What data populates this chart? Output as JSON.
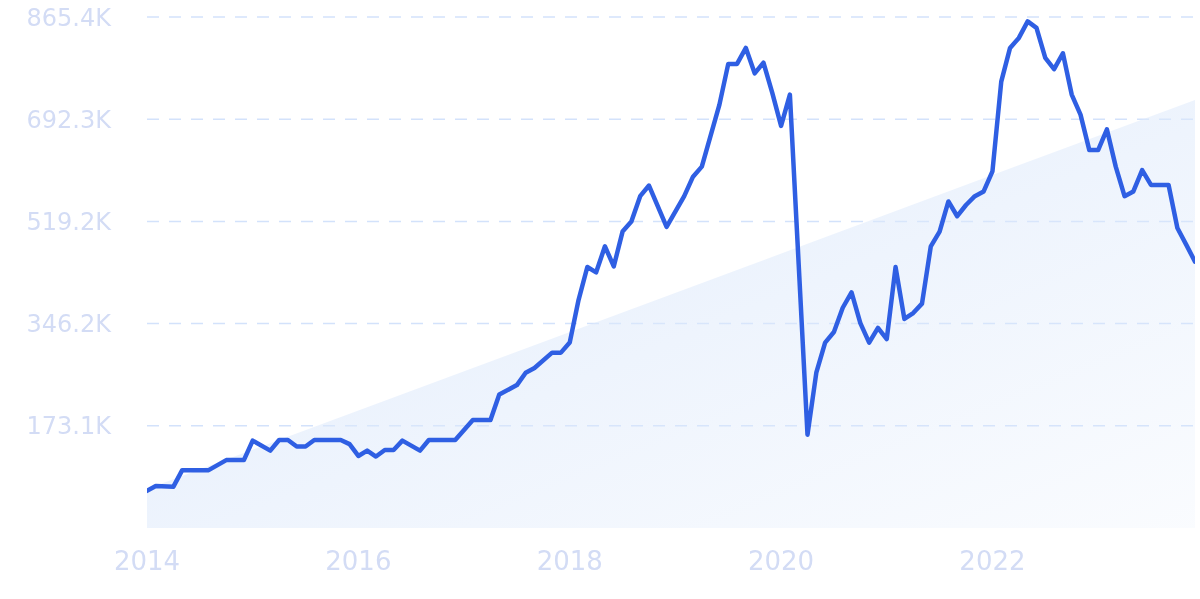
{
  "chart_data": {
    "type": "line",
    "xlim": [
      "2014-01",
      "2023-12"
    ],
    "xticks": [
      "2014",
      "2016",
      "2018",
      "2020",
      "2022"
    ],
    "ylim": [
      0,
      865400
    ],
    "yticks": [
      {
        "value": 173100,
        "label": "173.1K"
      },
      {
        "value": 346200,
        "label": "346.2K"
      },
      {
        "value": 519200,
        "label": "519.2K"
      },
      {
        "value": 692300,
        "label": "692.3K"
      },
      {
        "value": 865400,
        "label": "865.4K"
      }
    ],
    "grid": "y",
    "marker": "none",
    "line_style": "solid",
    "series": [
      {
        "type": "area",
        "color": "#dde9fb",
        "x": [
          "2014-01",
          "2023-12"
        ],
        "values": [
          66000,
          725000
        ]
      },
      {
        "color": "#2f5fe3",
        "x": [
          "2014-01",
          "2014-02",
          "2014-04",
          "2014-05",
          "2014-08",
          "2014-10",
          "2014-12",
          "2015-01",
          "2015-03",
          "2015-04",
          "2015-05",
          "2015-06",
          "2015-07",
          "2015-08",
          "2015-11",
          "2015-12",
          "2016-01",
          "2016-02",
          "2016-03",
          "2016-04",
          "2016-05",
          "2016-06",
          "2016-08",
          "2016-09",
          "2016-12",
          "2017-02",
          "2017-04",
          "2017-05",
          "2017-07",
          "2017-08",
          "2017-09",
          "2017-11",
          "2017-12",
          "2018-01",
          "2018-02",
          "2018-03",
          "2018-04",
          "2018-05",
          "2018-06",
          "2018-07",
          "2018-08",
          "2018-09",
          "2018-10",
          "2018-12",
          "2019-02",
          "2019-03",
          "2019-04",
          "2019-06",
          "2019-07",
          "2019-08",
          "2019-09",
          "2019-10",
          "2019-11",
          "2019-12",
          "2020-01",
          "2020-02",
          "2020-03",
          "2020-04",
          "2020-05",
          "2020-06",
          "2020-07",
          "2020-08",
          "2020-09",
          "2020-10",
          "2020-11",
          "2020-12",
          "2021-01",
          "2021-02",
          "2021-03",
          "2021-04",
          "2021-05",
          "2021-06",
          "2021-07",
          "2021-08",
          "2021-09",
          "2021-10",
          "2021-11",
          "2021-12",
          "2022-01",
          "2022-02",
          "2022-03",
          "2022-04",
          "2022-05",
          "2022-06",
          "2022-07",
          "2022-08",
          "2022-09",
          "2022-10",
          "2022-11",
          "2022-12",
          "2023-01",
          "2023-02",
          "2023-03",
          "2023-04",
          "2023-05",
          "2023-06",
          "2023-07",
          "2023-09",
          "2023-10",
          "2023-11",
          "2023-12"
        ],
        "values": [
          63000,
          71000,
          70000,
          98000,
          98000,
          115000,
          115000,
          148000,
          131000,
          149000,
          149000,
          138000,
          138000,
          149000,
          149000,
          142000,
          122000,
          131000,
          121000,
          132000,
          132000,
          148000,
          131000,
          149000,
          149000,
          183000,
          183000,
          226000,
          242000,
          263000,
          271000,
          297000,
          297000,
          314000,
          386000,
          442000,
          433000,
          477000,
          443000,
          502000,
          519000,
          562000,
          580000,
          510000,
          562000,
          595000,
          612000,
          717000,
          786000,
          786000,
          813000,
          770000,
          788000,
          737000,
          681000,
          734000,
          446000,
          158000,
          263000,
          314000,
          332000,
          373000,
          399000,
          347000,
          314000,
          339000,
          320000,
          442000,
          354000,
          364000,
          380000,
          477000,
          502000,
          553000,
          528000,
          547000,
          562000,
          570000,
          604000,
          756000,
          813000,
          830000,
          858000,
          847000,
          796000,
          777000,
          804000,
          734000,
          700000,
          640000,
          640000,
          675000,
          612000,
          562000,
          570000,
          606000,
          581000,
          581000,
          508000,
          480000,
          451000
        ]
      }
    ]
  }
}
